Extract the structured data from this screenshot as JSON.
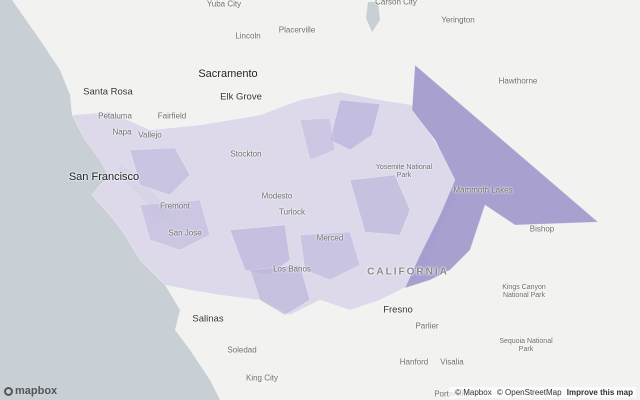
{
  "map": {
    "state_label": "CALIFORNIA",
    "cities": [
      {
        "name": "Yuba City",
        "size": "small"
      },
      {
        "name": "Lincoln",
        "size": "small"
      },
      {
        "name": "Placerville",
        "size": "small"
      },
      {
        "name": "Santa Rosa",
        "size": "city"
      },
      {
        "name": "Sacramento",
        "size": "big"
      },
      {
        "name": "Fairfield",
        "size": "small"
      },
      {
        "name": "Elk Grove",
        "size": "city"
      },
      {
        "name": "Petaluma",
        "size": "small"
      },
      {
        "name": "Vallejo",
        "size": "small"
      },
      {
        "name": "Napa",
        "size": "small"
      },
      {
        "name": "San Francisco",
        "size": "big"
      },
      {
        "name": "Stockton",
        "size": "small"
      },
      {
        "name": "Fremont",
        "size": "small"
      },
      {
        "name": "San Jose",
        "size": "small"
      },
      {
        "name": "Modesto",
        "size": "small"
      },
      {
        "name": "Turlock",
        "size": "small"
      },
      {
        "name": "Merced",
        "size": "small"
      },
      {
        "name": "Los Banos",
        "size": "small"
      },
      {
        "name": "Salinas",
        "size": "city"
      },
      {
        "name": "Fresno",
        "size": "city"
      },
      {
        "name": "Parlier",
        "size": "small"
      },
      {
        "name": "Hanford",
        "size": "small"
      },
      {
        "name": "Visalia",
        "size": "small"
      },
      {
        "name": "Soledad",
        "size": "small"
      },
      {
        "name": "King City",
        "size": "small"
      },
      {
        "name": "Bishop",
        "size": "small"
      },
      {
        "name": "Hawthorne",
        "size": "small"
      },
      {
        "name": "Yerington",
        "size": "small"
      },
      {
        "name": "Carson City",
        "size": "small"
      },
      {
        "name": "Mammoth Lakes",
        "size": "small"
      },
      {
        "name": "Porterville",
        "size": "small"
      }
    ],
    "parks": [
      "Yosemite National Park",
      "Kings Canyon National Park",
      "Sequoia National Park"
    ],
    "colors": {
      "ocean": "#c8d0d6",
      "land": "#f2f2f0",
      "region_light": "#d9d5ea",
      "region_mid": "#bdb6dc",
      "region_dark": "#9b93c9"
    }
  },
  "branding": {
    "logo_text": "mapbox"
  },
  "attribution": {
    "mapbox": "© Mapbox",
    "osm": "© OpenStreetMap",
    "improve": "Improve this map"
  }
}
